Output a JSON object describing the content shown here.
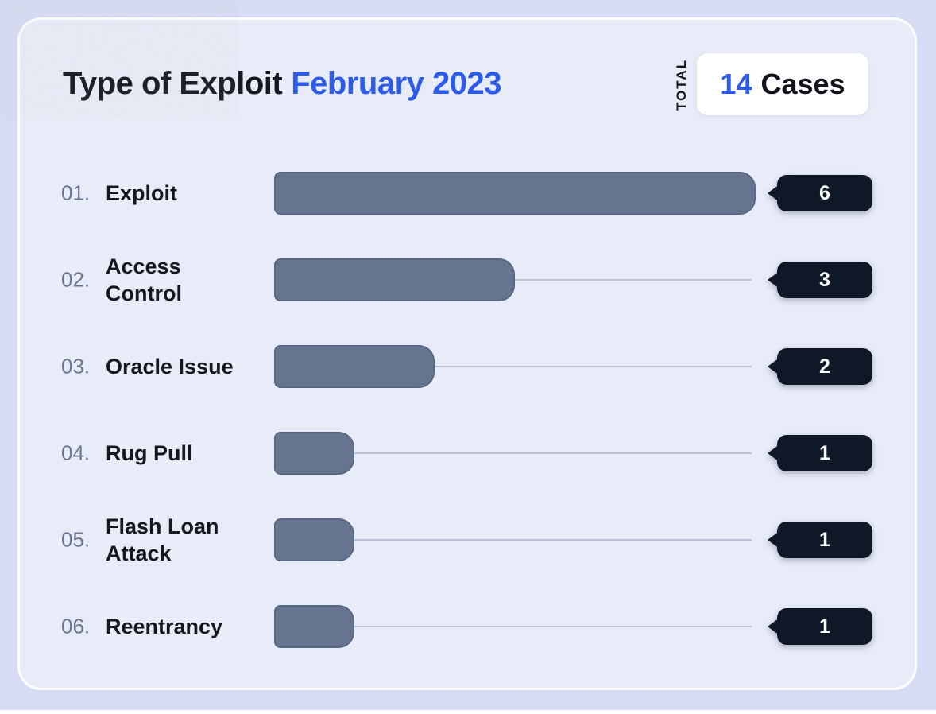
{
  "header": {
    "title_main": "Type of Exploit",
    "title_accent": "February 2023",
    "total": {
      "label": "TOTAL",
      "value": "14",
      "unit": "Cases"
    }
  },
  "chart_data": {
    "type": "bar",
    "orientation": "horizontal",
    "title": "Type of Exploit February 2023",
    "total_cases": 14,
    "categories": [
      "Exploit",
      "Access Control",
      "Oracle Issue",
      "Rug Pull",
      "Flash Loan Attack",
      "Reentrancy"
    ],
    "values": [
      6,
      3,
      2,
      1,
      1,
      1
    ],
    "xlim": [
      0,
      6
    ],
    "grid": false,
    "legend": false,
    "value_labels": [
      "6",
      "3",
      "2",
      "1",
      "1",
      "1"
    ]
  },
  "rows": [
    {
      "index": "01.",
      "lines": [
        "Exploit"
      ],
      "value": "6"
    },
    {
      "index": "02.",
      "lines": [
        "Access",
        "Control"
      ],
      "value": "3"
    },
    {
      "index": "03.",
      "lines": [
        "Oracle Issue"
      ],
      "value": "2"
    },
    {
      "index": "04.",
      "lines": [
        "Rug Pull"
      ],
      "value": "1"
    },
    {
      "index": "05.",
      "lines": [
        "Flash Loan",
        "Attack"
      ],
      "value": "1"
    },
    {
      "index": "06.",
      "lines": [
        "Reentrancy"
      ],
      "value": "1"
    }
  ],
  "colors": {
    "page_background": "#d6dcf3",
    "card_background": "#e8ecf8",
    "bar": "#66758f",
    "track_line": "#b9c2d6",
    "badge_background": "#0e1826",
    "badge_text": "#ffffff",
    "accent_blue": "#2c5bea",
    "text_dark": "#16181f",
    "row_index_gray": "#6b7691"
  }
}
